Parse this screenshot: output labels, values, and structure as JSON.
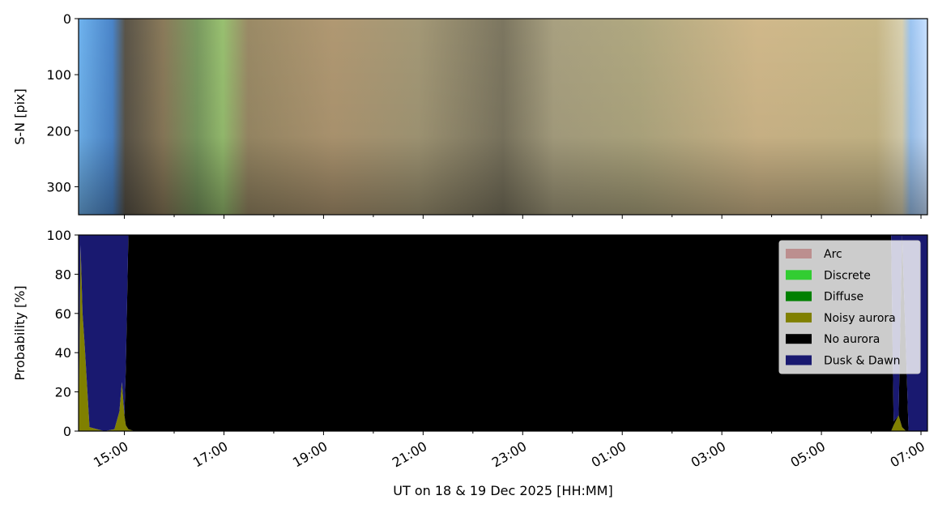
{
  "chart_data": [
    {
      "type": "image",
      "ylabel": "S-N [pix]",
      "ylim": [
        350,
        0
      ],
      "yticks": [
        0,
        100,
        200,
        300
      ]
    },
    {
      "type": "area",
      "ylabel": "Probability [%]",
      "xlabel": "UT on 18 & 19 Dec 2025 [HH:MM]",
      "xlim": [
        14.08,
        31.13
      ],
      "xticks": [
        {
          "value": 15,
          "label": "15:00"
        },
        {
          "value": 17,
          "label": "17:00"
        },
        {
          "value": 19,
          "label": "19:00"
        },
        {
          "value": 21,
          "label": "21:00"
        },
        {
          "value": 23,
          "label": "23:00"
        },
        {
          "value": 25,
          "label": "01:00"
        },
        {
          "value": 27,
          "label": "03:00"
        },
        {
          "value": 29,
          "label": "05:00"
        },
        {
          "value": 31,
          "label": "07:00"
        }
      ],
      "xminorticks": [
        16,
        18,
        20,
        22,
        24,
        26,
        28,
        30
      ],
      "ylim": [
        0,
        100
      ],
      "yticks": [
        0,
        20,
        40,
        60,
        80,
        100
      ],
      "legend": "upper right",
      "x": [
        14.08,
        14.12,
        14.16,
        14.2,
        14.3,
        14.6,
        14.8,
        14.9,
        14.95,
        15.0,
        15.03,
        15.08,
        15.2,
        20,
        25,
        30.4,
        30.45,
        30.55,
        30.62,
        30.7,
        30.75,
        31.13
      ],
      "series": [
        {
          "name": "Arc",
          "color": "#bc8f8f",
          "values": [
            0,
            0,
            0,
            0,
            0,
            0,
            0,
            0,
            0,
            0,
            0,
            0,
            0,
            0,
            0,
            0,
            0,
            0,
            0,
            0,
            0,
            0
          ]
        },
        {
          "name": "Discrete",
          "color": "#32cd32",
          "values": [
            0,
            0,
            0,
            0,
            0,
            0,
            0,
            0,
            0,
            0,
            0,
            0,
            0,
            0,
            0,
            0,
            0,
            0,
            0,
            0,
            0,
            0
          ]
        },
        {
          "name": "Diffuse",
          "color": "#008000",
          "values": [
            0,
            0,
            0,
            0,
            0,
            0,
            0,
            0,
            0,
            0,
            0,
            0,
            0,
            0,
            0,
            0,
            0,
            0,
            0,
            0,
            0,
            0
          ]
        },
        {
          "name": "Noisy aurora",
          "color": "#808000",
          "values": [
            0,
            95,
            60,
            45,
            2,
            0,
            1,
            10,
            25,
            8,
            3,
            1,
            0,
            0,
            0,
            0,
            3,
            8,
            2,
            0,
            0,
            0
          ]
        },
        {
          "name": "No aurora",
          "color": "#000000",
          "values": [
            0,
            0,
            0,
            0,
            0,
            0,
            0,
            0,
            0,
            0,
            30,
            99,
            100,
            100,
            100,
            100,
            2,
            0,
            98,
            40,
            0,
            0
          ]
        },
        {
          "name": "Dusk & Dawn",
          "color": "#191970",
          "values": [
            100,
            5,
            40,
            55,
            98,
            100,
            99,
            90,
            75,
            92,
            67,
            0,
            0,
            0,
            0,
            0,
            95,
            92,
            0,
            60,
            100,
            100
          ]
        }
      ]
    }
  ]
}
